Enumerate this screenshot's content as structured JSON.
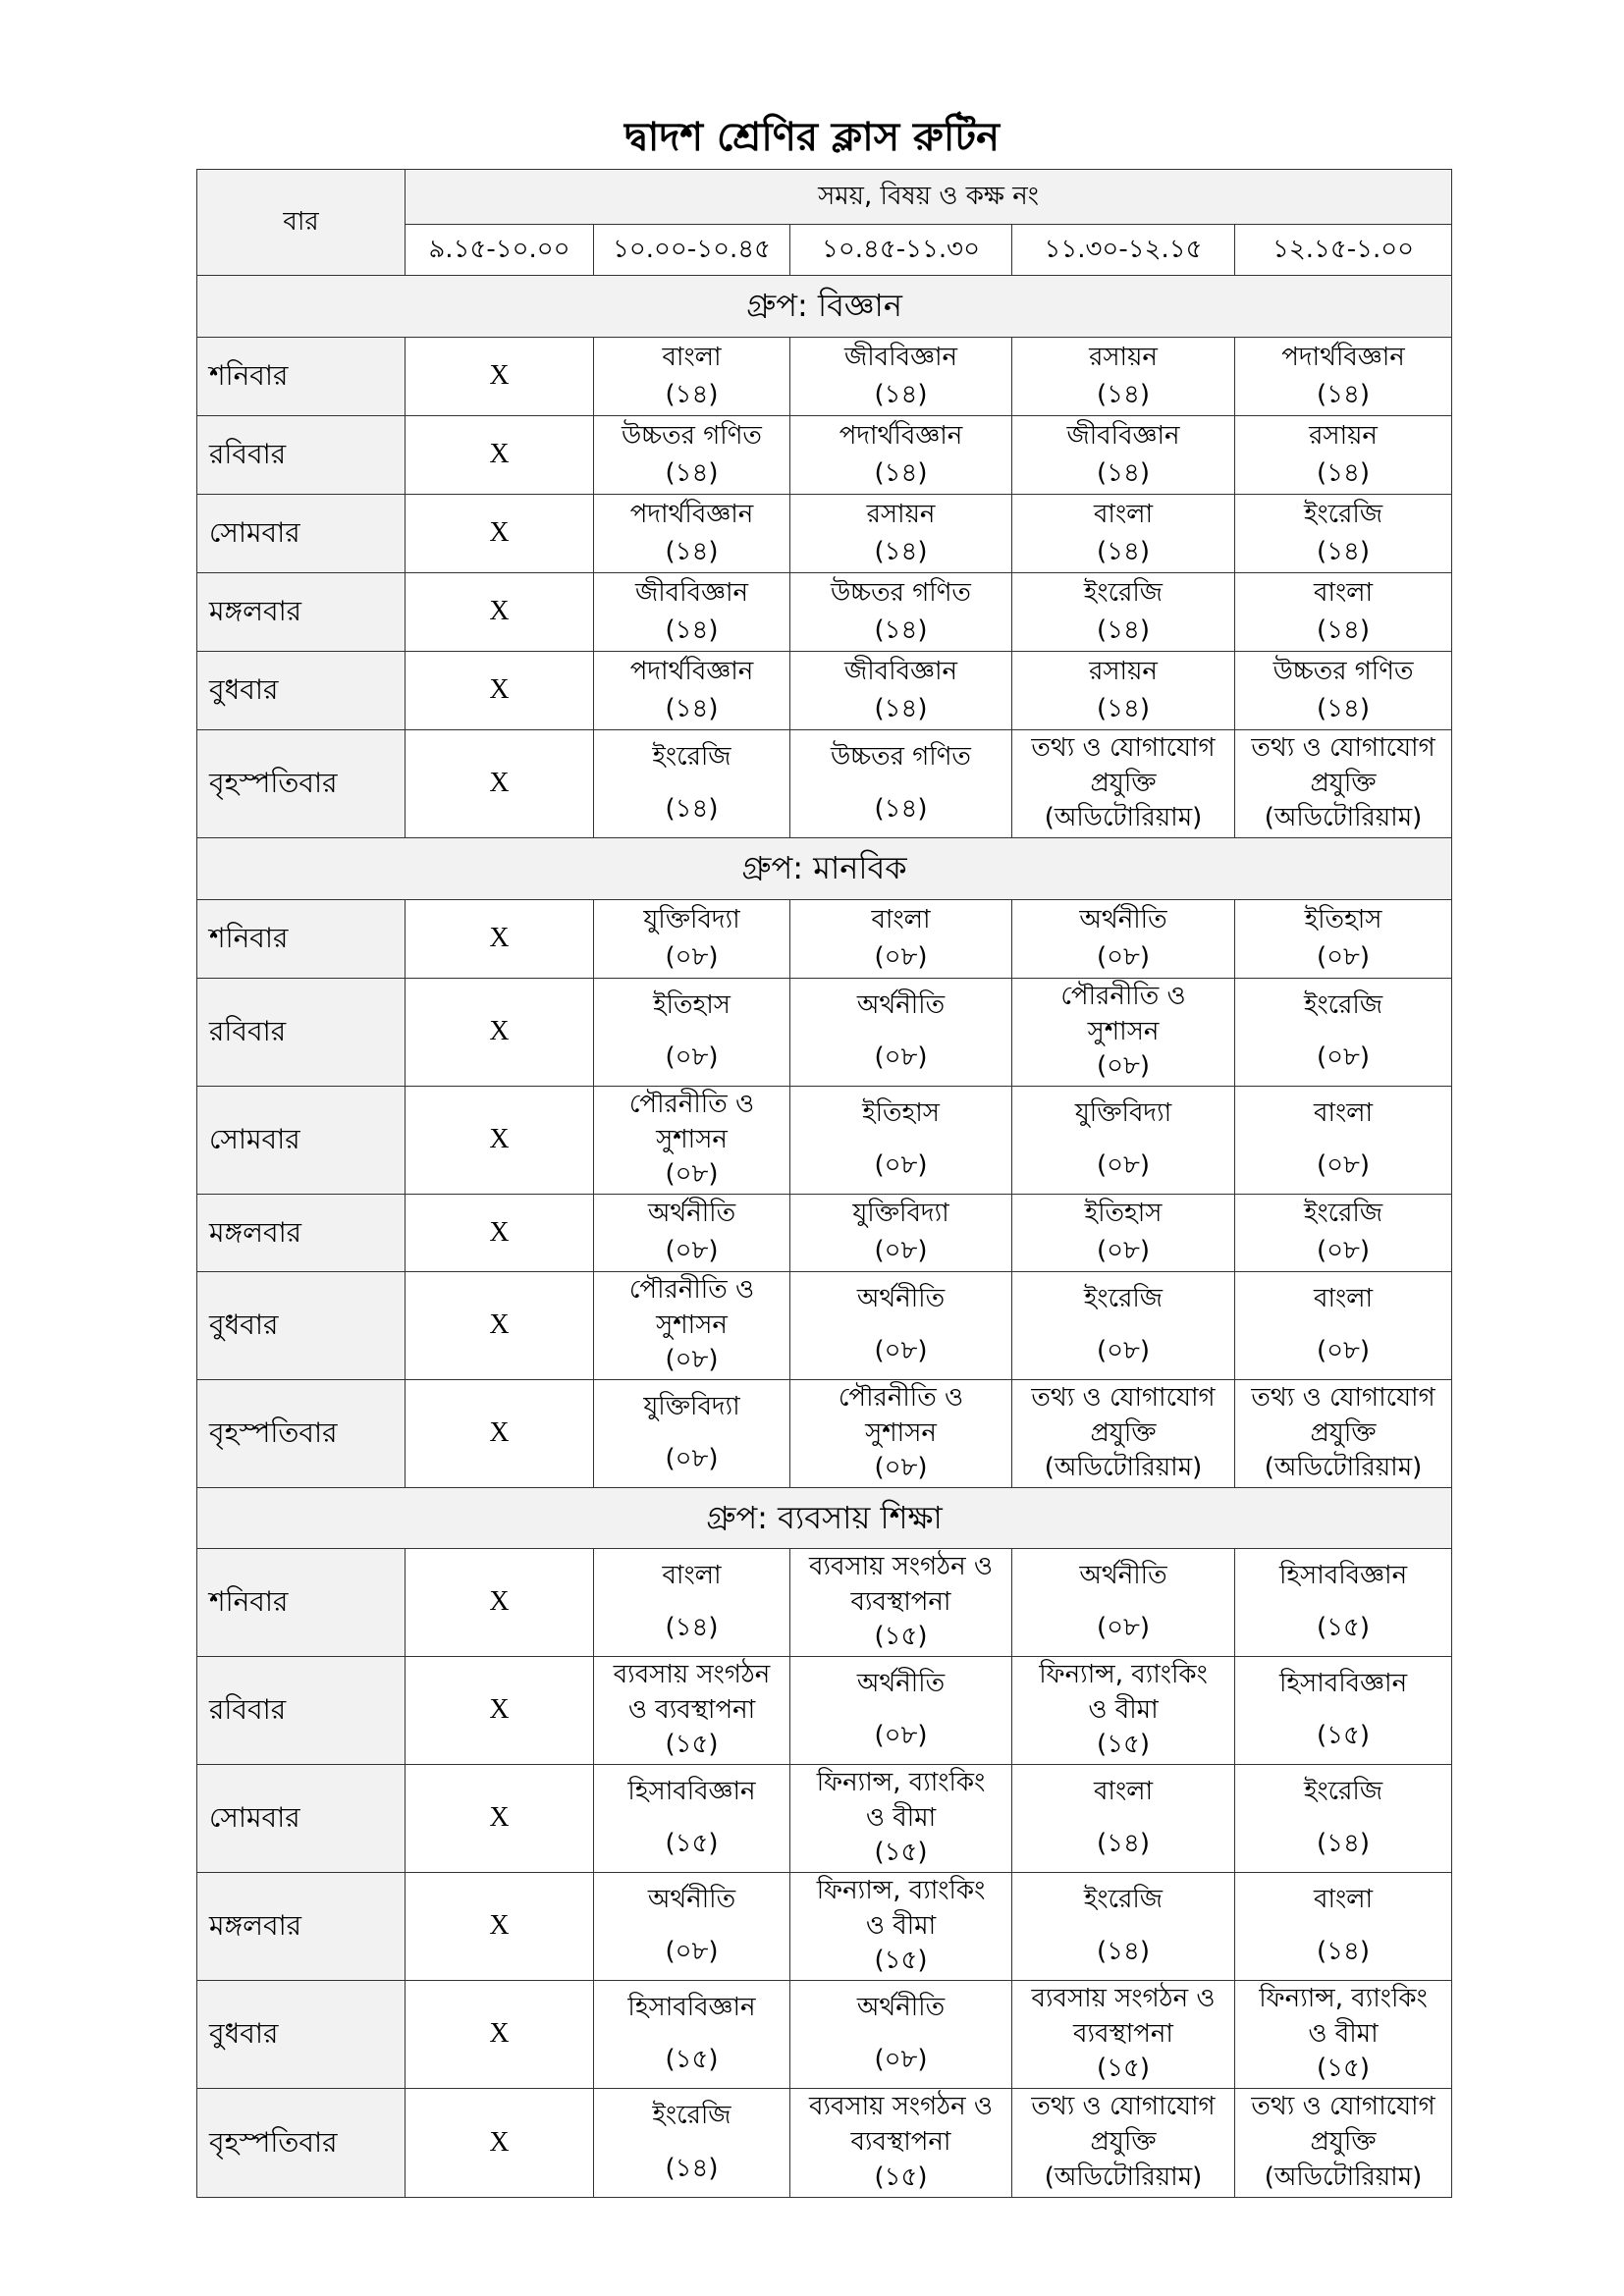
{
  "title": "দ্বাদশ শ্রেণির ক্লাস রুটিন",
  "header": {
    "day_label": "বার",
    "span_label": "সময়, বিষয় ও কক্ষ নং",
    "times": [
      "৯.১৫-১০.০০",
      "১০.০০-১০.৪৫",
      "১০.৪৫-১১.৩০",
      "১১.৩০-১২.১৫",
      "১২.১৫-১.০০"
    ]
  },
  "groups": [
    {
      "label": "গ্রুপ: বিজ্ঞান",
      "rows": [
        {
          "day": "শনিবার",
          "cells": [
            [
              "X"
            ],
            [
              "বাংলা",
              "(১৪)"
            ],
            [
              "জীববিজ্ঞান",
              "(১৪)"
            ],
            [
              "রসায়ন",
              "(১৪)"
            ],
            [
              "পদার্থবিজ্ঞান",
              "(১৪)"
            ]
          ]
        },
        {
          "day": "রবিবার",
          "cells": [
            [
              "X"
            ],
            [
              "উচ্চতর গণিত",
              "(১৪)"
            ],
            [
              "পদার্থবিজ্ঞান",
              "(১৪)"
            ],
            [
              "জীববিজ্ঞান",
              "(১৪)"
            ],
            [
              "রসায়ন",
              "(১৪)"
            ]
          ]
        },
        {
          "day": "সোমবার",
          "cells": [
            [
              "X"
            ],
            [
              "পদার্থবিজ্ঞান",
              "(১৪)"
            ],
            [
              "রসায়ন",
              "(১৪)"
            ],
            [
              "বাংলা",
              "(১৪)"
            ],
            [
              "ইংরেজি",
              "(১৪)"
            ]
          ]
        },
        {
          "day": "মঙ্গলবার",
          "cells": [
            [
              "X"
            ],
            [
              "জীববিজ্ঞান",
              "(১৪)"
            ],
            [
              "উচ্চতর গণিত",
              "(১৪)"
            ],
            [
              "ইংরেজি",
              "(১৪)"
            ],
            [
              "বাংলা",
              "(১৪)"
            ]
          ]
        },
        {
          "day": "বুধবার",
          "cells": [
            [
              "X"
            ],
            [
              "পদার্থবিজ্ঞান",
              "(১৪)"
            ],
            [
              "জীববিজ্ঞান",
              "(১৪)"
            ],
            [
              "রসায়ন",
              "(১৪)"
            ],
            [
              "উচ্চতর গণিত",
              "(১৪)"
            ]
          ]
        },
        {
          "day": "বৃহস্পতিবার",
          "cells": [
            [
              "X"
            ],
            [
              "ইংরেজি",
              "(১৪)"
            ],
            [
              "উচ্চতর গণিত",
              "(১৪)"
            ],
            [
              "তথ্য ও যোগাযোগ",
              "প্রযুক্তি",
              "(অডিটোরিয়াম)"
            ],
            [
              "তথ্য ও যোগাযোগ",
              "প্রযুক্তি",
              "(অডিটোরিয়াম)"
            ]
          ]
        }
      ]
    },
    {
      "label": "গ্রুপ: মানবিক",
      "rows": [
        {
          "day": "শনিবার",
          "cells": [
            [
              "X"
            ],
            [
              "যুক্তিবিদ্যা",
              "(০৮)"
            ],
            [
              "বাংলা",
              "(০৮)"
            ],
            [
              "অর্থনীতি",
              "(০৮)"
            ],
            [
              "ইতিহাস",
              "(০৮)"
            ]
          ]
        },
        {
          "day": "রবিবার",
          "cells": [
            [
              "X"
            ],
            [
              "ইতিহাস",
              "(০৮)"
            ],
            [
              "অর্থনীতি",
              "(০৮)"
            ],
            [
              "পৌরনীতি ও",
              "সুশাসন",
              "(০৮)"
            ],
            [
              "ইংরেজি",
              "(০৮)"
            ]
          ]
        },
        {
          "day": "সোমবার",
          "cells": [
            [
              "X"
            ],
            [
              "পৌরনীতি ও",
              "সুশাসন",
              "(০৮)"
            ],
            [
              "ইতিহাস",
              "(০৮)"
            ],
            [
              "যুক্তিবিদ্যা",
              "(০৮)"
            ],
            [
              "বাংলা",
              "(০৮)"
            ]
          ]
        },
        {
          "day": "মঙ্গলবার",
          "cells": [
            [
              "X"
            ],
            [
              "অর্থনীতি",
              "(০৮)"
            ],
            [
              "যুক্তিবিদ্যা",
              "(০৮)"
            ],
            [
              "ইতিহাস",
              "(০৮)"
            ],
            [
              "ইংরেজি",
              "(০৮)"
            ]
          ]
        },
        {
          "day": "বুধবার",
          "cells": [
            [
              "X"
            ],
            [
              "পৌরনীতি ও",
              "সুশাসন",
              "(০৮)"
            ],
            [
              "অর্থনীতি",
              "(০৮)"
            ],
            [
              "ইংরেজি",
              "(০৮)"
            ],
            [
              "বাংলা",
              "(০৮)"
            ]
          ]
        },
        {
          "day": "বৃহস্পতিবার",
          "cells": [
            [
              "X"
            ],
            [
              "যুক্তিবিদ্যা",
              "(০৮)"
            ],
            [
              "পৌরনীতি ও",
              "সুশাসন",
              "(০৮)"
            ],
            [
              "তথ্য ও যোগাযোগ",
              "প্রযুক্তি",
              "(অডিটোরিয়াম)"
            ],
            [
              "তথ্য ও যোগাযোগ",
              "প্রযুক্তি",
              "(অডিটোরিয়াম)"
            ]
          ]
        }
      ]
    },
    {
      "label": "গ্রুপ: ব্যবসায় শিক্ষা",
      "rows": [
        {
          "day": "শনিবার",
          "cells": [
            [
              "X"
            ],
            [
              "বাংলা",
              "(১৪)"
            ],
            [
              "ব্যবসায় সংগঠন ও",
              "ব্যবস্থাপনা",
              "(১৫)"
            ],
            [
              "অর্থনীতি",
              "(০৮)"
            ],
            [
              "হিসাববিজ্ঞান",
              "(১৫)"
            ]
          ]
        },
        {
          "day": "রবিবার",
          "cells": [
            [
              "X"
            ],
            [
              "ব্যবসায় সংগঠন",
              "ও ব্যবস্থাপনা",
              "(১৫)"
            ],
            [
              "অর্থনীতি",
              "(০৮)"
            ],
            [
              "ফিন্যান্স, ব্যাংকিং",
              "ও বীমা",
              "(১৫)"
            ],
            [
              "হিসাববিজ্ঞান",
              "(১৫)"
            ]
          ]
        },
        {
          "day": "সোমবার",
          "cells": [
            [
              "X"
            ],
            [
              "হিসাববিজ্ঞান",
              "(১৫)"
            ],
            [
              "ফিন্যান্স, ব্যাংকিং",
              "ও বীমা",
              "(১৫)"
            ],
            [
              "বাংলা",
              "(১৪)"
            ],
            [
              "ইংরেজি",
              "(১৪)"
            ]
          ]
        },
        {
          "day": "মঙ্গলবার",
          "cells": [
            [
              "X"
            ],
            [
              "অর্থনীতি",
              "(০৮)"
            ],
            [
              "ফিন্যান্স, ব্যাংকিং",
              "ও বীমা",
              "(১৫)"
            ],
            [
              "ইংরেজি",
              "(১৪)"
            ],
            [
              "বাংলা",
              "(১৪)"
            ]
          ]
        },
        {
          "day": "বুধবার",
          "cells": [
            [
              "X"
            ],
            [
              "হিসাববিজ্ঞান",
              "(১৫)"
            ],
            [
              "অর্থনীতি",
              "(০৮)"
            ],
            [
              "ব্যবসায় সংগঠন ও",
              "ব্যবস্থাপনা",
              "(১৫)"
            ],
            [
              "ফিন্যান্স, ব্যাংকিং",
              "ও বীমা",
              "(১৫)"
            ]
          ]
        },
        {
          "day": "বৃহস্পতিবার",
          "cells": [
            [
              "X"
            ],
            [
              "ইংরেজি",
              "(১৪)"
            ],
            [
              "ব্যবসায় সংগঠন ও",
              "ব্যবস্থাপনা",
              "(১৫)"
            ],
            [
              "তথ্য ও যোগাযোগ",
              "প্রযুক্তি",
              "(অডিটোরিয়াম)"
            ],
            [
              "তথ্য ও যোগাযোগ",
              "প্রযুক্তি",
              "(অডিটোরিয়াম)"
            ]
          ]
        }
      ]
    }
  ]
}
